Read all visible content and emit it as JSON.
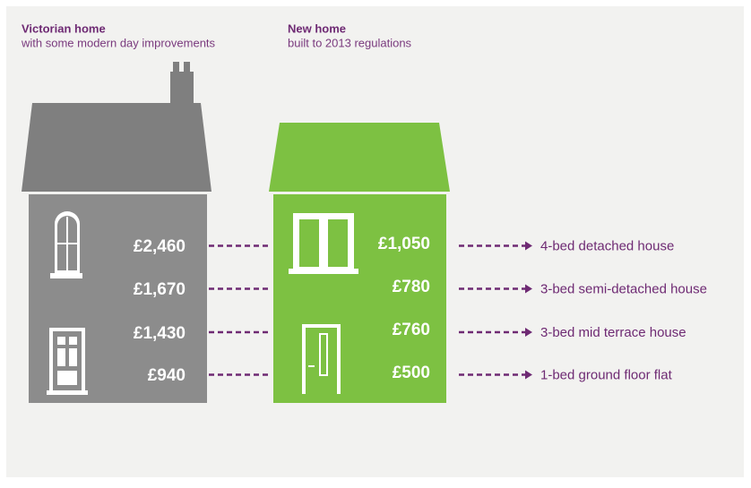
{
  "victorian": {
    "title": "Victorian home",
    "subtitle": "with some modern day improvements",
    "costs": [
      "£2,460",
      "£1,670",
      "£1,430",
      "£940"
    ]
  },
  "new_home": {
    "title": "New home",
    "subtitle": "built to 2013 regulations",
    "costs": [
      "£1,050",
      "£780",
      "£760",
      "£500"
    ]
  },
  "property_types": [
    "4-bed detached house",
    "3-bed semi-detached house",
    "3-bed mid terrace house",
    "1-bed ground floor flat"
  ]
}
